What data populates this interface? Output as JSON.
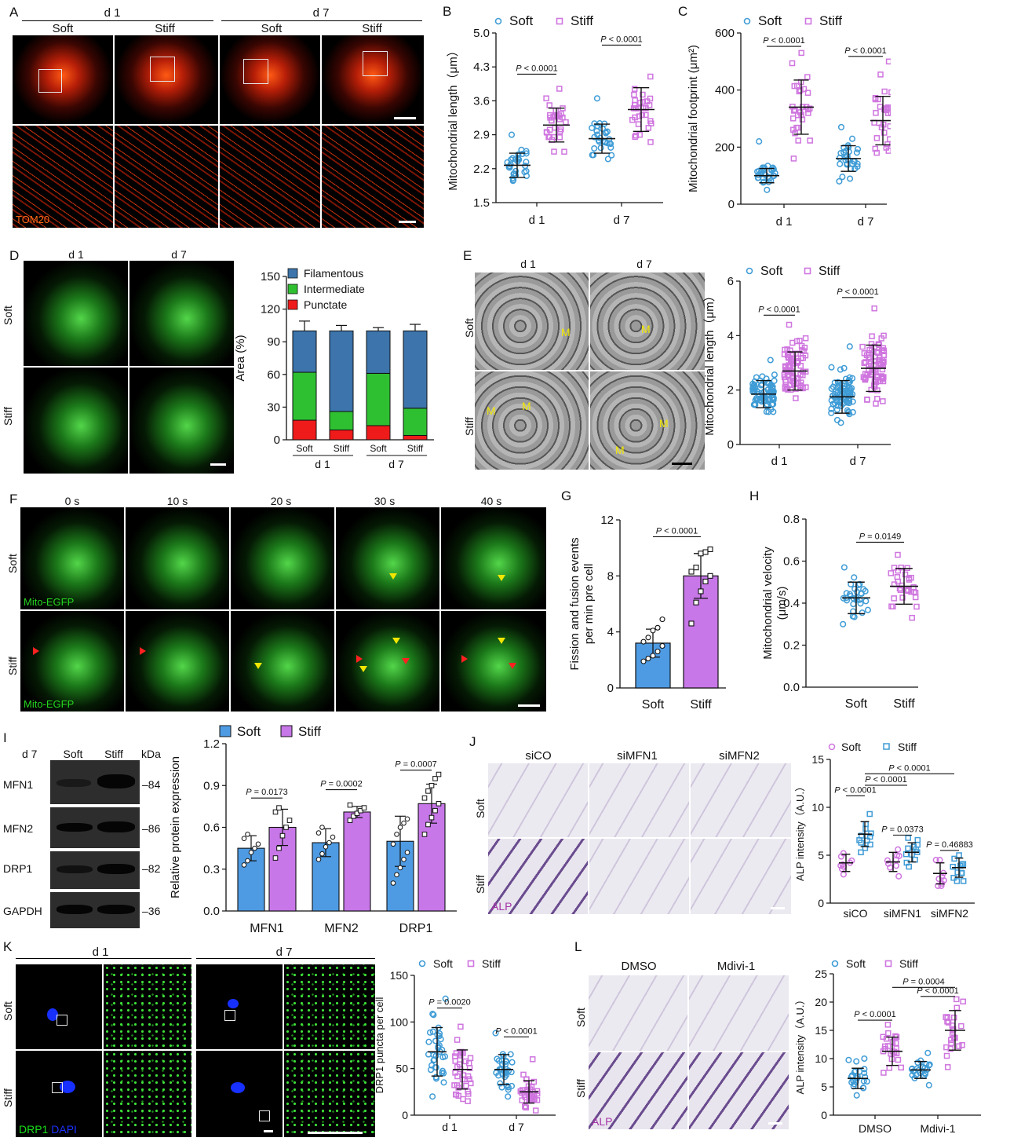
{
  "colors": {
    "soft": "#3f9cd6",
    "stiff": "#cf75df",
    "soft_bar": "#4e9be3",
    "stiff_bar": "#c777e8",
    "filamentous": "#3c74ab",
    "intermediate": "#2fc032",
    "punctate": "#ef1b1b"
  },
  "panels": {
    "A": {
      "label": "A",
      "day1": "d 1",
      "day7": "d 7",
      "soft": "Soft",
      "stiff": "Stiff",
      "stain": "TOM20"
    },
    "D": {
      "label": "D",
      "day1": "d 1",
      "day7": "d 7",
      "soft": "Soft",
      "stiff": "Stiff"
    },
    "E": {
      "label": "E",
      "day1": "d 1",
      "day7": "d 7",
      "soft": "Soft",
      "stiff": "Stiff",
      "marker": "M"
    },
    "F": {
      "label": "F",
      "times": [
        "0 s",
        "10 s",
        "20 s",
        "30 s",
        "40 s"
      ],
      "soft": "Soft",
      "stiff": "Stiff",
      "stain": "Mito-EGFP"
    },
    "I": {
      "label": "I",
      "day": "d 7",
      "soft": "Soft",
      "stiff": "Stiff",
      "kda": "kDa",
      "proteins": [
        "MFN1",
        "MFN2",
        "DRP1",
        "GAPDH"
      ],
      "sizes": [
        "84",
        "86",
        "82",
        "36"
      ]
    },
    "J": {
      "label": "J",
      "conditions": [
        "siCO",
        "siMFN1",
        "siMFN2"
      ],
      "soft": "Soft",
      "stiff": "Stiff",
      "stain": "ALP"
    },
    "K": {
      "label": "K",
      "day1": "d 1",
      "day7": "d 7",
      "soft": "Soft",
      "stiff": "Stiff",
      "stain1": "DRP1",
      "slash": "/",
      "stain2": "DAPI"
    },
    "L": {
      "label": "L",
      "conditions": [
        "DMSO",
        "Mdivi-1"
      ],
      "soft": "Soft",
      "stiff": "Stiff",
      "stain": "ALP"
    }
  },
  "chart_data": [
    {
      "id": "B",
      "label": "B",
      "type": "scatter",
      "ylabel": "Mitochondrial length（μm）",
      "categories": [
        "d 1",
        "d 7"
      ],
      "ylim": [
        1.5,
        5.0
      ],
      "yticks": [
        "1.5",
        "2.2",
        "2.9",
        "3.6",
        "4.3",
        "5.0"
      ],
      "legend": [
        "Soft",
        "Stiff"
      ],
      "series": [
        {
          "name": "Soft",
          "mean": [
            2.27,
            2.82
          ],
          "sd": [
            0.25,
            0.3
          ],
          "range": [
            [
              1.95,
              2.9
            ],
            [
              2.4,
              3.65
            ]
          ],
          "n": 30
        },
        {
          "name": "Stiff",
          "mean": [
            3.1,
            3.42
          ],
          "sd": [
            0.35,
            0.45
          ],
          "range": [
            [
              2.55,
              3.85
            ],
            [
              2.75,
              4.1
            ]
          ],
          "n": 30
        }
      ],
      "pvalues": [
        {
          "text": "P < 0.0001",
          "group": 0
        },
        {
          "text": "P < 0.0001",
          "group": 1
        }
      ]
    },
    {
      "id": "C",
      "label": "C",
      "type": "scatter",
      "ylabel": "Mitochondrial footprint (μm²)",
      "categories": [
        "d 1",
        "d 7"
      ],
      "ylim": [
        0,
        600
      ],
      "yticks": [
        "0",
        "200",
        "400",
        "600"
      ],
      "legend": [
        "Soft",
        "Stiff"
      ],
      "series": [
        {
          "name": "Soft",
          "mean": [
            100,
            160
          ],
          "sd": [
            25,
            45
          ],
          "range": [
            [
              50,
              220
            ],
            [
              80,
              270
            ]
          ],
          "n": 30
        },
        {
          "name": "Stiff",
          "mean": [
            340,
            293
          ],
          "sd": [
            95,
            85
          ],
          "range": [
            [
              160,
              530
            ],
            [
              180,
              500
            ]
          ],
          "n": 30
        }
      ],
      "pvalues": [
        {
          "text": "P < 0.0001",
          "group": 0
        },
        {
          "text": "P < 0.0001",
          "group": 1
        }
      ]
    },
    {
      "id": "D",
      "type": "bar",
      "stacked": true,
      "ylabel": "Area (%)",
      "ylim": [
        0,
        150
      ],
      "yticks": [
        "0",
        "30",
        "60",
        "90",
        "120",
        "150"
      ],
      "categories": [
        "Soft",
        "Stiff",
        "Soft",
        "Stiff"
      ],
      "groups": [
        "d 1",
        "d 7"
      ],
      "series": [
        {
          "name": "Punctate",
          "values": [
            18,
            9,
            13,
            4
          ],
          "err": [
            10,
            4,
            4,
            3
          ]
        },
        {
          "name": "Intermediate",
          "values": [
            44,
            17,
            48,
            25
          ],
          "err": [
            9,
            3,
            6,
            5
          ]
        },
        {
          "name": "Filamentous",
          "values": [
            38,
            74,
            39,
            71
          ],
          "err": [
            9,
            5,
            3,
            6
          ]
        }
      ]
    },
    {
      "id": "E",
      "type": "scatter",
      "ylabel": "Mitochondrial length（μm）",
      "categories": [
        "d 1",
        "d 7"
      ],
      "ylim": [
        0,
        6
      ],
      "yticks": [
        "0",
        "2",
        "4",
        "6"
      ],
      "legend": [
        "Soft",
        "Stiff"
      ],
      "series": [
        {
          "name": "Soft",
          "mean": [
            1.85,
            1.75
          ],
          "sd": [
            0.5,
            0.6
          ],
          "range": [
            [
              1.2,
              3.1
            ],
            [
              0.8,
              3.6
            ]
          ],
          "n": 80
        },
        {
          "name": "Stiff",
          "mean": [
            2.7,
            2.8
          ],
          "sd": [
            0.7,
            0.85
          ],
          "range": [
            [
              1.7,
              4.4
            ],
            [
              1.5,
              5.0
            ]
          ],
          "n": 80
        }
      ],
      "pvalues": [
        {
          "text": "P < 0.0001",
          "group": 0
        },
        {
          "text": "P < 0.0001",
          "group": 1
        }
      ]
    },
    {
      "id": "G",
      "label": "G",
      "type": "bar",
      "ylabel": "Fission and fusion  events per min pre cell",
      "categories": [
        "Soft",
        "Stiff"
      ],
      "ylim": [
        0,
        12
      ],
      "yticks": [
        "0",
        "4",
        "8",
        "12"
      ],
      "values": [
        3.2,
        8.0
      ],
      "sd": [
        1.0,
        1.6
      ],
      "points": [
        [
          1.9,
          2.1,
          2.3,
          2.6,
          3.0,
          3.3,
          3.6,
          4.1,
          4.3,
          4.9
        ],
        [
          4.6,
          6.1,
          6.9,
          7.6,
          8.0,
          8.3,
          8.6,
          9.6,
          9.7,
          9.9
        ]
      ],
      "pvalues": [
        {
          "text": "P < 0.0001"
        }
      ]
    },
    {
      "id": "H",
      "label": "H",
      "type": "scatter",
      "ylabel": "Mitochondrial velocity (μm/s)",
      "categories": [
        "Soft",
        "Stiff"
      ],
      "ylim": [
        0.0,
        0.8
      ],
      "yticks": [
        "0.0",
        "0.2",
        "0.4",
        "0.6",
        "0.8"
      ],
      "series": [
        {
          "name": "Soft",
          "mean": [
            0.425
          ],
          "sd": [
            0.075
          ],
          "range": [
            [
              0.3,
              0.57
            ]
          ],
          "n": 30
        },
        {
          "name": "Stiff",
          "mean": [
            0.48
          ],
          "sd": [
            0.085
          ],
          "range": [
            [
              0.33,
              0.63
            ]
          ],
          "n": 30
        }
      ],
      "pvalues": [
        {
          "text": "P = 0.0149"
        }
      ]
    },
    {
      "id": "I",
      "type": "bar",
      "ylabel": "Relative protein expression",
      "categories": [
        "MFN1",
        "MFN2",
        "DRP1"
      ],
      "ylim": [
        0.0,
        1.2
      ],
      "yticks": [
        "0.0",
        "0.3",
        "0.6",
        "0.9",
        "1.2"
      ],
      "legend": [
        "Soft",
        "Stiff"
      ],
      "series": [
        {
          "name": "Soft",
          "values": [
            0.45,
            0.49,
            0.5
          ],
          "sd": [
            0.09,
            0.1,
            0.18
          ],
          "points": [
            [
              0.33,
              0.36,
              0.42,
              0.45,
              0.48,
              0.52,
              0.55
            ],
            [
              0.37,
              0.41,
              0.46,
              0.49,
              0.53,
              0.56,
              0.6
            ],
            [
              0.2,
              0.26,
              0.31,
              0.37,
              0.42,
              0.48,
              0.55,
              0.6,
              0.63,
              0.66
            ]
          ]
        },
        {
          "name": "Stiff",
          "values": [
            0.6,
            0.71,
            0.77
          ],
          "sd": [
            0.13,
            0.04,
            0.14
          ],
          "points": [
            [
              0.38,
              0.45,
              0.54,
              0.6,
              0.65,
              0.71,
              0.74
            ],
            [
              0.65,
              0.68,
              0.7,
              0.72,
              0.74,
              0.76
            ],
            [
              0.55,
              0.62,
              0.67,
              0.72,
              0.77,
              0.81,
              0.86,
              0.9,
              0.95,
              0.98
            ]
          ]
        }
      ],
      "pvalues": [
        {
          "text": "P = 0.0173",
          "group": 0
        },
        {
          "text": "P = 0.0002",
          "group": 1
        },
        {
          "text": "P = 0.0007",
          "group": 2
        }
      ]
    },
    {
      "id": "J",
      "type": "scatter",
      "ylabel": "ALP intensity（A.U.）",
      "categories": [
        "siCO",
        "siMFN1",
        "siMFN2"
      ],
      "ylim": [
        0,
        15
      ],
      "yticks": [
        "0",
        "5",
        "10",
        "15"
      ],
      "legend": [
        "Soft",
        "Stiff"
      ],
      "series": [
        {
          "name": "Soft",
          "mean": [
            4.2,
            4.3,
            3.1
          ],
          "sd": [
            0.9,
            1.0,
            1.1
          ],
          "range": [
            [
              3.0,
              5.2
            ],
            [
              2.8,
              5.6
            ],
            [
              1.8,
              4.5
            ]
          ],
          "n": 9
        },
        {
          "name": "Stiff",
          "mean": [
            7.2,
            5.3,
            3.7
          ],
          "sd": [
            1.3,
            1.0,
            1.0
          ],
          "range": [
            [
              5.3,
              9.3
            ],
            [
              3.8,
              6.8
            ],
            [
              2.3,
              5.0
            ]
          ],
          "n": 12
        }
      ],
      "pvalues": [
        {
          "text": "P < 0.0001"
        },
        {
          "text": "P < 0.0001"
        },
        {
          "text": "P < 0.0001"
        },
        {
          "text": "P = 0.0373"
        },
        {
          "text": "P = 0.46883"
        }
      ]
    },
    {
      "id": "K",
      "type": "scatter",
      "ylabel": "DRP1 puncta per cell",
      "categories": [
        "d 1",
        "d 7"
      ],
      "ylim": [
        0,
        150
      ],
      "yticks": [
        "0",
        "50",
        "100",
        "150"
      ],
      "legend": [
        "Soft",
        "Stiff"
      ],
      "series": [
        {
          "name": "Soft",
          "mean": [
            68,
            49
          ],
          "sd": [
            26,
            16
          ],
          "range": [
            [
              20,
              125
            ],
            [
              20,
              88
            ]
          ],
          "n": 35
        },
        {
          "name": "Stiff",
          "mean": [
            49,
            25
          ],
          "sd": [
            21,
            12
          ],
          "range": [
            [
              15,
              95
            ],
            [
              5,
              60
            ]
          ],
          "n": 35
        }
      ],
      "pvalues": [
        {
          "text": "P = 0.0020",
          "group": 0
        },
        {
          "text": "P < 0.0001",
          "group": 1
        }
      ]
    },
    {
      "id": "L",
      "type": "scatter",
      "ylabel": "ALP intensity（A.U.）",
      "categories": [
        "DMSO",
        "Mdivi-1"
      ],
      "ylim": [
        0,
        25
      ],
      "yticks": [
        "0",
        "5",
        "10",
        "15",
        "20",
        "25"
      ],
      "legend": [
        "Soft",
        "Stiff"
      ],
      "series": [
        {
          "name": "Soft",
          "mean": [
            6.5,
            8.0
          ],
          "sd": [
            1.8,
            1.5
          ],
          "range": [
            [
              3.5,
              10.0
            ],
            [
              5.3,
              11.0
            ]
          ],
          "n": 24
        },
        {
          "name": "Stiff",
          "mean": [
            11.3,
            15.0
          ],
          "sd": [
            2.5,
            3.5
          ],
          "range": [
            [
              7.5,
              16.0
            ],
            [
              8.5,
              20.5
            ]
          ],
          "n": 24
        }
      ],
      "pvalues": [
        {
          "text": "P < 0.0001"
        },
        {
          "text": "P = 0.0004"
        },
        {
          "text": "P < 0.0001"
        }
      ]
    }
  ]
}
